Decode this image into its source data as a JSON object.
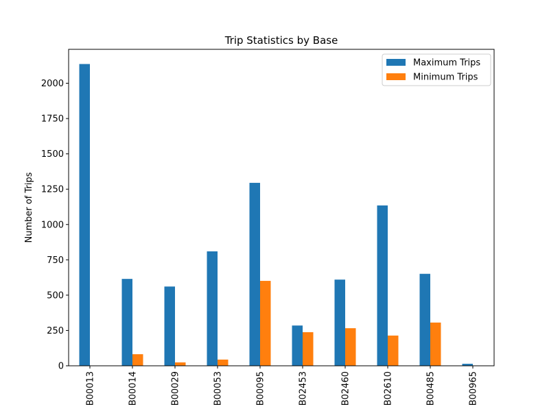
{
  "chart_data": {
    "type": "bar",
    "title": "Trip Statistics by Base",
    "xlabel": "",
    "ylabel": "Number of Trips",
    "categories": [
      "B00013",
      "B00014",
      "B00029",
      "B00053",
      "B00095",
      "B02453",
      "B02460",
      "B02610",
      "B00485",
      "B00965"
    ],
    "series": [
      {
        "name": "Maximum Trips",
        "color": "#1f77b4",
        "values": [
          2136,
          615,
          561,
          810,
          1295,
          285,
          610,
          1135,
          651,
          14
        ]
      },
      {
        "name": "Minimum Trips",
        "color": "#ff7f0e",
        "values": [
          0,
          82,
          24,
          44,
          601,
          238,
          266,
          214,
          306,
          0
        ]
      }
    ],
    "ylim": [
      0,
      2240
    ],
    "yticks": [
      0,
      250,
      500,
      750,
      1000,
      1250,
      1500,
      1750,
      2000
    ],
    "ytick_labels": [
      "0",
      "250",
      "500",
      "750",
      "1000",
      "1250",
      "1500",
      "1750",
      "2000"
    ],
    "legend_position": "upper-right",
    "grid": false
  }
}
